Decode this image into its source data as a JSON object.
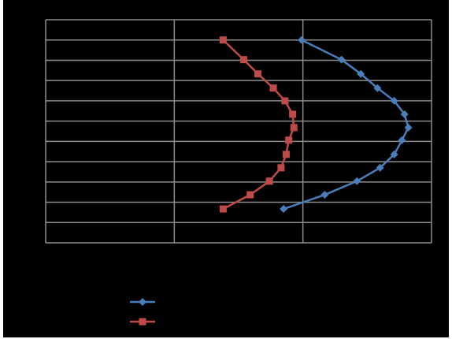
{
  "chart_data": {
    "type": "scatter",
    "lines": true,
    "grid": true,
    "legend": true,
    "legend_position": "bottom",
    "xlim": [
      0,
      3
    ],
    "xticks": [
      0,
      1,
      2,
      3
    ],
    "ylim": [
      0,
      11
    ],
    "yticks": [
      0,
      1,
      2,
      3,
      4,
      5,
      6,
      7,
      8,
      9,
      10,
      11
    ],
    "series": [
      {
        "color": "#4a7ebb",
        "marker": "diamond",
        "x": [
          1.99,
          2.3,
          2.45,
          2.58,
          2.71,
          2.79,
          2.82,
          2.77,
          2.71,
          2.6,
          2.42,
          2.17,
          1.85
        ],
        "y": [
          10,
          9.03,
          8.33,
          7.63,
          7.0,
          6.34,
          5.68,
          5.06,
          4.36,
          3.7,
          3.04,
          2.37,
          1.67
        ]
      },
      {
        "color": "#be4b48",
        "marker": "square",
        "x": [
          1.38,
          1.54,
          1.65,
          1.77,
          1.86,
          1.92,
          1.93,
          1.89,
          1.87,
          1.83,
          1.74,
          1.59,
          1.38
        ],
        "y": [
          10,
          9.03,
          8.33,
          7.63,
          7.0,
          6.34,
          5.68,
          5.06,
          4.36,
          3.7,
          3.04,
          2.37,
          1.67
        ]
      }
    ]
  }
}
